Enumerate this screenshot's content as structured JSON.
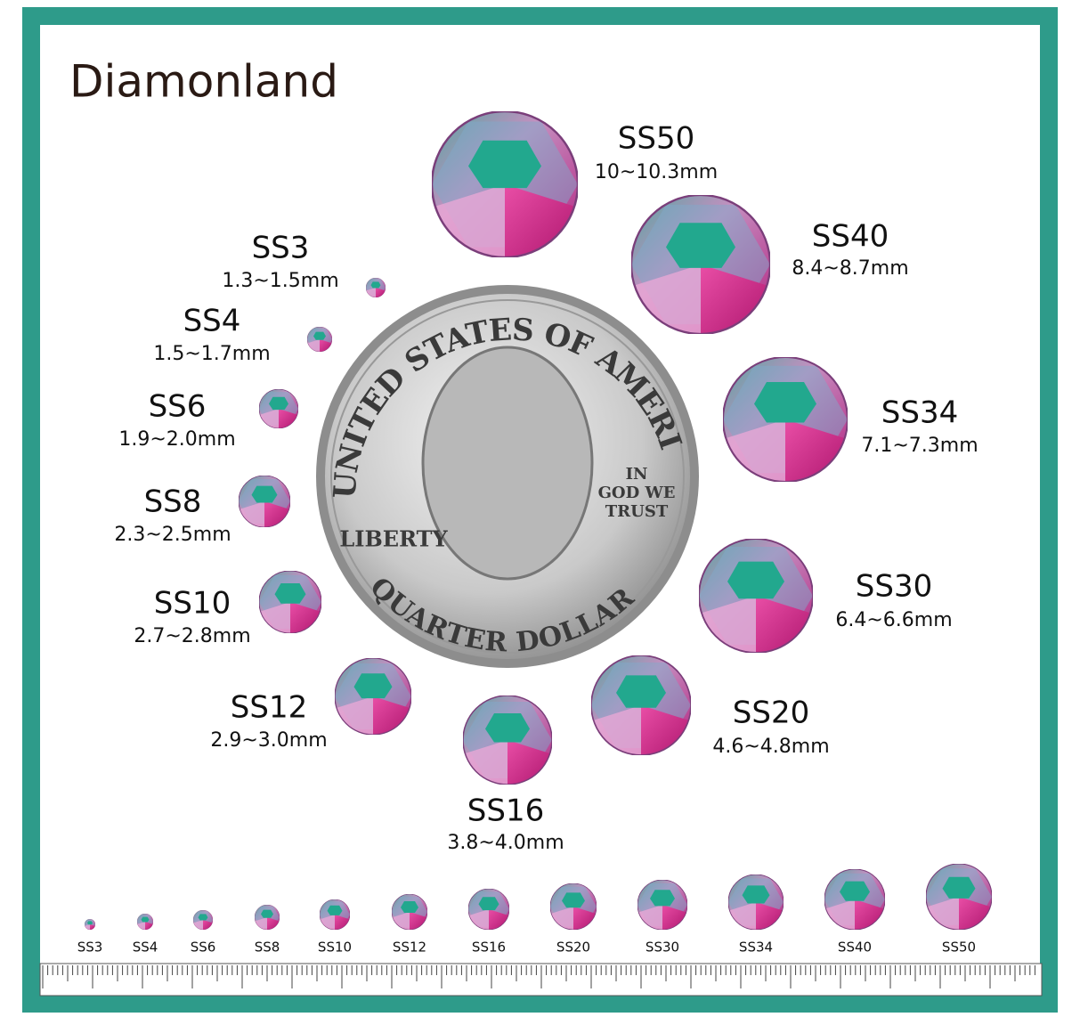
{
  "brand": "Diamonland",
  "coin": {
    "top": "UNITED STATES OF AMERICA",
    "motto": [
      "IN",
      "GOD WE",
      "TRUST"
    ],
    "left": "LIBERTY",
    "bottom": "QUARTER DOLLAR"
  },
  "sizes": [
    {
      "name": "SS3",
      "range": "1.3~1.5mm"
    },
    {
      "name": "SS4",
      "range": "1.5~1.7mm"
    },
    {
      "name": "SS6",
      "range": "1.9~2.0mm"
    },
    {
      "name": "SS8",
      "range": "2.3~2.5mm"
    },
    {
      "name": "SS10",
      "range": "2.7~2.8mm"
    },
    {
      "name": "SS12",
      "range": "2.9~3.0mm"
    },
    {
      "name": "SS16",
      "range": "3.8~4.0mm"
    },
    {
      "name": "SS20",
      "range": "4.6~4.8mm"
    },
    {
      "name": "SS30",
      "range": "6.4~6.6mm"
    },
    {
      "name": "SS34",
      "range": "7.1~7.3mm"
    },
    {
      "name": "SS40",
      "range": "8.4~8.7mm"
    },
    {
      "name": "SS50",
      "range": "10~10.3mm"
    }
  ]
}
